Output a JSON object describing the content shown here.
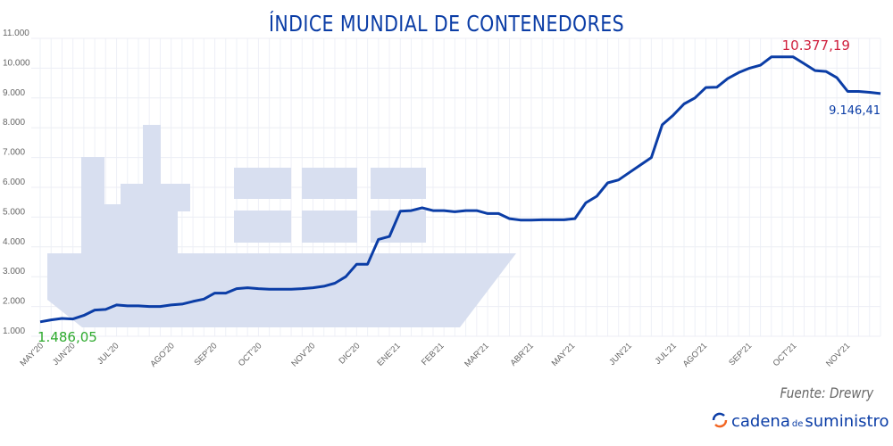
{
  "chart_data": {
    "type": "line",
    "title": "ÍNDICE MUNDIAL DE CONTENEDORES",
    "ylim": [
      1000,
      11000
    ],
    "yticks": [
      "1.000",
      "2.000",
      "3.000",
      "4.000",
      "5.000",
      "6.000",
      "7.000",
      "8.000",
      "9.000",
      "10.000",
      "11.000"
    ],
    "grid": true,
    "x_tick_labels": [
      {
        "label": "MAY'20",
        "week": 0
      },
      {
        "label": "JUN'20",
        "week": 2.9
      },
      {
        "label": "JUL'20",
        "week": 6.9
      },
      {
        "label": "AGO'20",
        "week": 12
      },
      {
        "label": "SEP'20",
        "week": 15.9
      },
      {
        "label": "OCT'20",
        "week": 20
      },
      {
        "label": "NOV'20",
        "week": 24.9
      },
      {
        "label": "DIC'20",
        "week": 29
      },
      {
        "label": "ENE'21",
        "week": 32.7
      },
      {
        "label": "FEB'21",
        "week": 36.7
      },
      {
        "label": "MAR'21",
        "week": 40.8
      },
      {
        "label": "ABR'21",
        "week": 44.9
      },
      {
        "label": "MAY'21",
        "week": 48.7
      },
      {
        "label": "JUN'21",
        "week": 53.9
      },
      {
        "label": "JUL'21",
        "week": 58
      },
      {
        "label": "AGO'21",
        "week": 60.8
      },
      {
        "label": "SEP'21",
        "week": 64.9
      },
      {
        "label": "OCT'21",
        "week": 69
      },
      {
        "label": "NOV'21",
        "week": 73.9
      }
    ],
    "values": [
      1486,
      1550,
      1600,
      1580,
      1700,
      1880,
      1900,
      2050,
      2020,
      2020,
      2000,
      2000,
      2050,
      2080,
      2170,
      2250,
      2450,
      2450,
      2600,
      2630,
      2600,
      2580,
      2580,
      2580,
      2600,
      2630,
      2680,
      2780,
      3000,
      3420,
      3420,
      4250,
      4350,
      5200,
      5220,
      5310,
      5220,
      5220,
      5180,
      5220,
      5220,
      5120,
      5120,
      4950,
      4900,
      4900,
      4910,
      4910,
      4910,
      4950,
      5480,
      5700,
      6150,
      6250,
      6500,
      6750,
      7000,
      8100,
      8420,
      8800,
      9000,
      9350,
      9360,
      9650,
      9850,
      10000,
      10100,
      10377,
      10377,
      10377,
      10150,
      9920,
      9890,
      9680,
      9220,
      9220,
      9190,
      9146
    ],
    "annotations": [
      {
        "text": "1.486,05",
        "color": "#2eaa2e",
        "point": "first"
      },
      {
        "text": "10.377,19",
        "color": "#d0223f",
        "point": "max"
      },
      {
        "text": "9.146,41",
        "color": "#0b3da6",
        "point": "last"
      }
    ],
    "line_color": "#0b3da6",
    "source": "Fuente: Drewry"
  },
  "brand": {
    "name_a": "cadena",
    "name_de": "de",
    "name_b": "suministro"
  }
}
